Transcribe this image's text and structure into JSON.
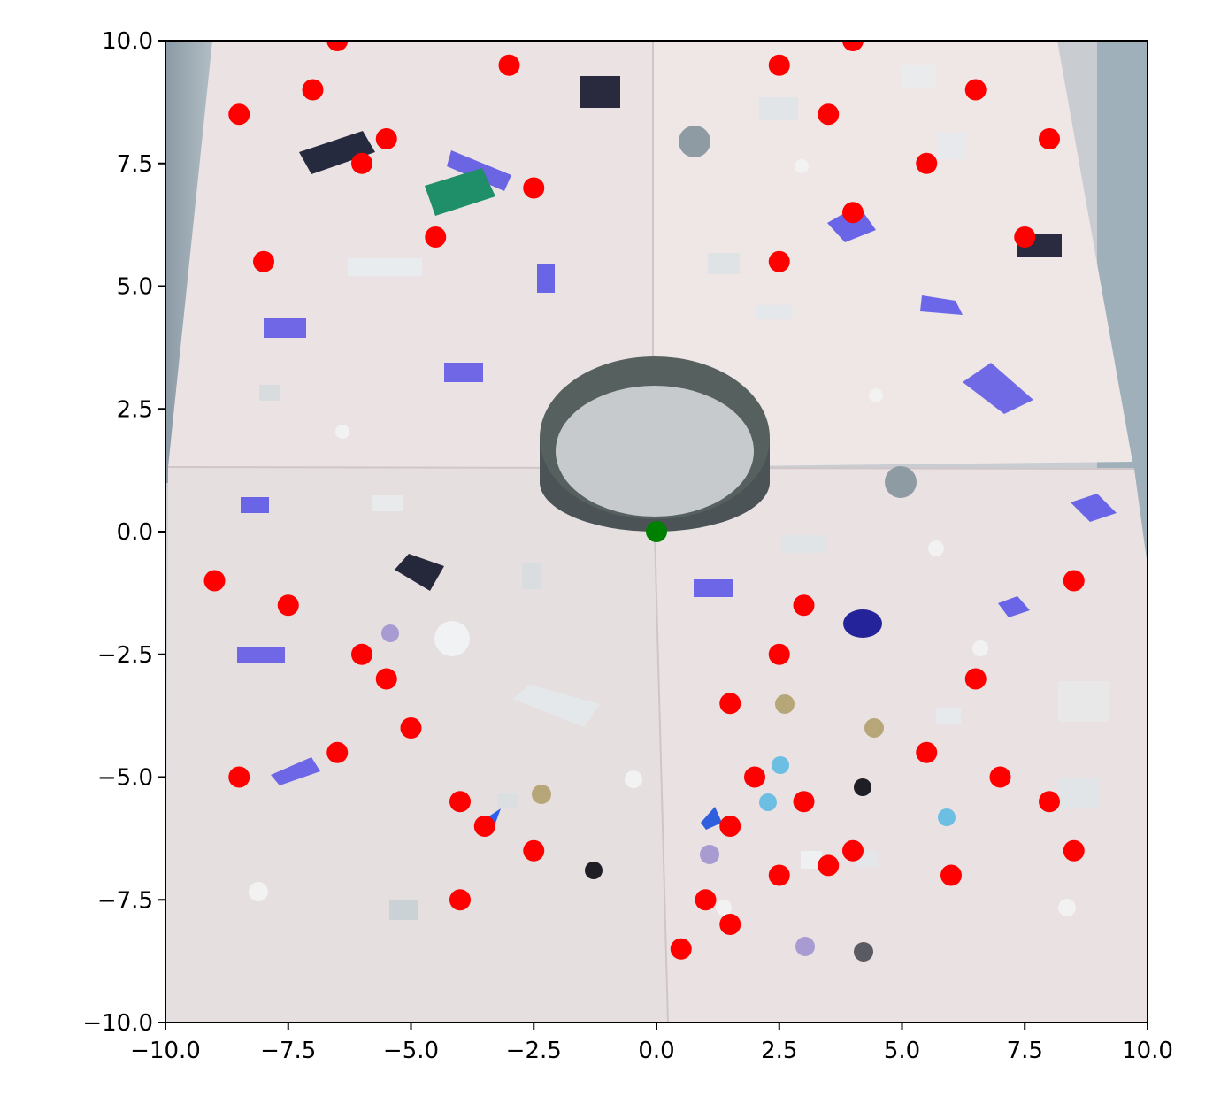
{
  "chart_data": {
    "type": "scatter",
    "title": "",
    "xlabel": "",
    "ylabel": "",
    "xlim": [
      -10,
      10
    ],
    "ylim": [
      -10,
      10
    ],
    "grid": false,
    "background": "photograph of LEGO pieces scattered on white paper sheets around a dark circular ring",
    "x_ticks": [
      -10.0,
      -7.5,
      -5.0,
      -2.5,
      0.0,
      2.5,
      5.0,
      7.5,
      10.0
    ],
    "x_tick_labels": [
      "−10.0",
      "−7.5",
      "−5.0",
      "−2.5",
      "0.0",
      "2.5",
      "5.0",
      "7.5",
      "10.0"
    ],
    "y_ticks": [
      10.0,
      7.5,
      5.0,
      2.5,
      0.0,
      -2.5,
      -5.0,
      -7.5,
      -10.0
    ],
    "y_tick_labels": [
      "10.0",
      "7.5",
      "5.0",
      "2.5",
      "0.0",
      "−2.5",
      "−5.0",
      "−7.5",
      "−10.0"
    ],
    "series": [
      {
        "color": "#ff0000",
        "points": [
          [
            -6.5,
            10
          ],
          [
            -3,
            9.5
          ],
          [
            -7,
            9
          ],
          [
            -8.5,
            8.5
          ],
          [
            -5.5,
            8
          ],
          [
            -6,
            7.5
          ],
          [
            -2.5,
            7
          ],
          [
            -4.5,
            6
          ],
          [
            -8,
            5.5
          ],
          [
            2.5,
            9.5
          ],
          [
            4,
            10
          ],
          [
            6.5,
            9
          ],
          [
            3.5,
            8.5
          ],
          [
            8,
            8
          ],
          [
            5.5,
            7.5
          ],
          [
            4,
            6.5
          ],
          [
            7.5,
            6
          ],
          [
            2.5,
            5.5
          ],
          [
            -9,
            -1
          ],
          [
            -7.5,
            -1.5
          ],
          [
            -6,
            -2.5
          ],
          [
            -5.5,
            -3
          ],
          [
            -5,
            -4
          ],
          [
            -6.5,
            -4.5
          ],
          [
            -8.5,
            -5
          ],
          [
            -4,
            -5.5
          ],
          [
            -3.5,
            -6
          ],
          [
            -2.5,
            -6.5
          ],
          [
            -4,
            -7.5
          ],
          [
            3,
            -1.5
          ],
          [
            2.5,
            -2.5
          ],
          [
            1.5,
            -3.5
          ],
          [
            2,
            -5
          ],
          [
            3,
            -5.5
          ],
          [
            1.5,
            -6
          ],
          [
            4,
            -6.5
          ],
          [
            3.5,
            -6.8
          ],
          [
            2.5,
            -7
          ],
          [
            1,
            -7.5
          ],
          [
            1.5,
            -8
          ],
          [
            0.5,
            -8.5
          ],
          [
            8.5,
            -1
          ],
          [
            6.5,
            -3
          ],
          [
            5.5,
            -4.5
          ],
          [
            7,
            -5
          ],
          [
            8,
            -5.5
          ],
          [
            8.5,
            -6.5
          ],
          [
            6,
            -7
          ]
        ]
      },
      {
        "color": "#008000",
        "points": [
          [
            0,
            0
          ]
        ]
      }
    ]
  }
}
